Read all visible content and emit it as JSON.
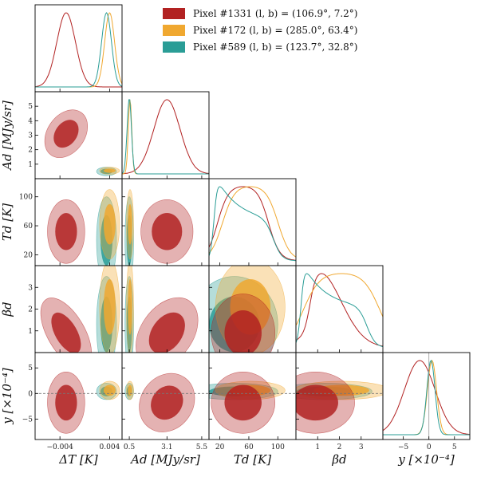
{
  "chart_data": {
    "type": "triangle-corner",
    "legend": {
      "placement": "top-right",
      "entries": [
        {
          "name": "Pixel #1331 (l, b) = (106.9°, 7.2°)",
          "color": "#b22222"
        },
        {
          "name": "Pixel #172  (l, b) = (285.0°, 63.4°)",
          "color": "#f0a830"
        },
        {
          "name": "Pixel #589  (l, b) = (123.7°, 32.8°)",
          "color": "#2a9d96"
        }
      ]
    },
    "parameters": [
      {
        "key": "dT",
        "label": "ΔT [K]",
        "ticks": [
          "−0.004",
          "0.004"
        ],
        "tick_values": [
          -0.004,
          0.004
        ],
        "range": [
          -0.008,
          0.006
        ]
      },
      {
        "key": "Ad",
        "label": "Ad [MJy/sr]",
        "ticks": [
          "0.5",
          "3.1",
          "5.5"
        ],
        "tick_values": [
          0.5,
          3.1,
          5.5
        ],
        "y_ticks": [
          "1",
          "2",
          "3",
          "4",
          "5"
        ],
        "y_tick_values": [
          1,
          2,
          3,
          4,
          5
        ],
        "range": [
          0.0,
          6.0
        ]
      },
      {
        "key": "Td",
        "label": "Td [K]",
        "ticks": [
          "20",
          "60",
          "100"
        ],
        "tick_values": [
          20,
          60,
          100
        ],
        "y_ticks": [
          "20",
          "60",
          "100"
        ],
        "y_tick_values": [
          20,
          60,
          100
        ],
        "range": [
          5,
          125
        ]
      },
      {
        "key": "beta",
        "label": "βd",
        "ticks": [
          "1",
          "2",
          "3"
        ],
        "tick_values": [
          1,
          2,
          3
        ],
        "y_ticks": [
          "1",
          "2",
          "3"
        ],
        "y_tick_values": [
          1,
          2,
          3
        ],
        "range": [
          0,
          4
        ]
      },
      {
        "key": "y",
        "label": "y [×10⁻⁴]",
        "ticks": [
          "−5",
          "0",
          "5"
        ],
        "tick_values": [
          -5,
          0,
          5
        ],
        "y_ticks": [
          "−5",
          "0",
          "5"
        ],
        "y_tick_values": [
          -5,
          0,
          5
        ],
        "range": [
          -9,
          8
        ]
      }
    ],
    "series": [
      {
        "name": "Pixel #1331",
        "color": "#b22222",
        "mean": {
          "dT": -0.003,
          "Ad": 3.1,
          "Td": 52,
          "beta": 0.9,
          "y": -1.8
        },
        "sigma": {
          "dT": 0.0015,
          "Ad": 0.9,
          "Td": 22,
          "beta": 0.9,
          "y": 3.0
        },
        "marginal_shape": {
          "dT": "gauss",
          "Ad": "gauss",
          "Td": "flat",
          "beta": "skew",
          "y": "gauss"
        }
      },
      {
        "name": "Pixel #172",
        "color": "#f0a830",
        "mean": {
          "dT": 0.004,
          "Ad": 0.55,
          "Td": 62,
          "beta": 2.1,
          "y": 0.6
        },
        "sigma": {
          "dT": 0.0008,
          "Ad": 0.12,
          "Td": 24,
          "beta": 1.1,
          "y": 0.9
        },
        "marginal_shape": {
          "dT": "gauss",
          "Ad": "gauss",
          "Td": "flat",
          "beta": "flat",
          "y": "gauss"
        }
      },
      {
        "name": "Pixel #589",
        "color": "#2a9d96",
        "mean": {
          "dT": 0.0035,
          "Ad": 0.5,
          "Td": 40,
          "beta": 1.3,
          "y": 0.4
        },
        "sigma": {
          "dT": 0.0008,
          "Ad": 0.15,
          "Td": 30,
          "beta": 1.1,
          "y": 0.8
        },
        "marginal_shape": {
          "dT": "gauss",
          "Ad": "gauss",
          "Td": "decay",
          "beta": "decay",
          "y": "gauss"
        }
      }
    ],
    "reference_line": {
      "parameter": "y",
      "value": 0,
      "style": "dashed"
    }
  }
}
